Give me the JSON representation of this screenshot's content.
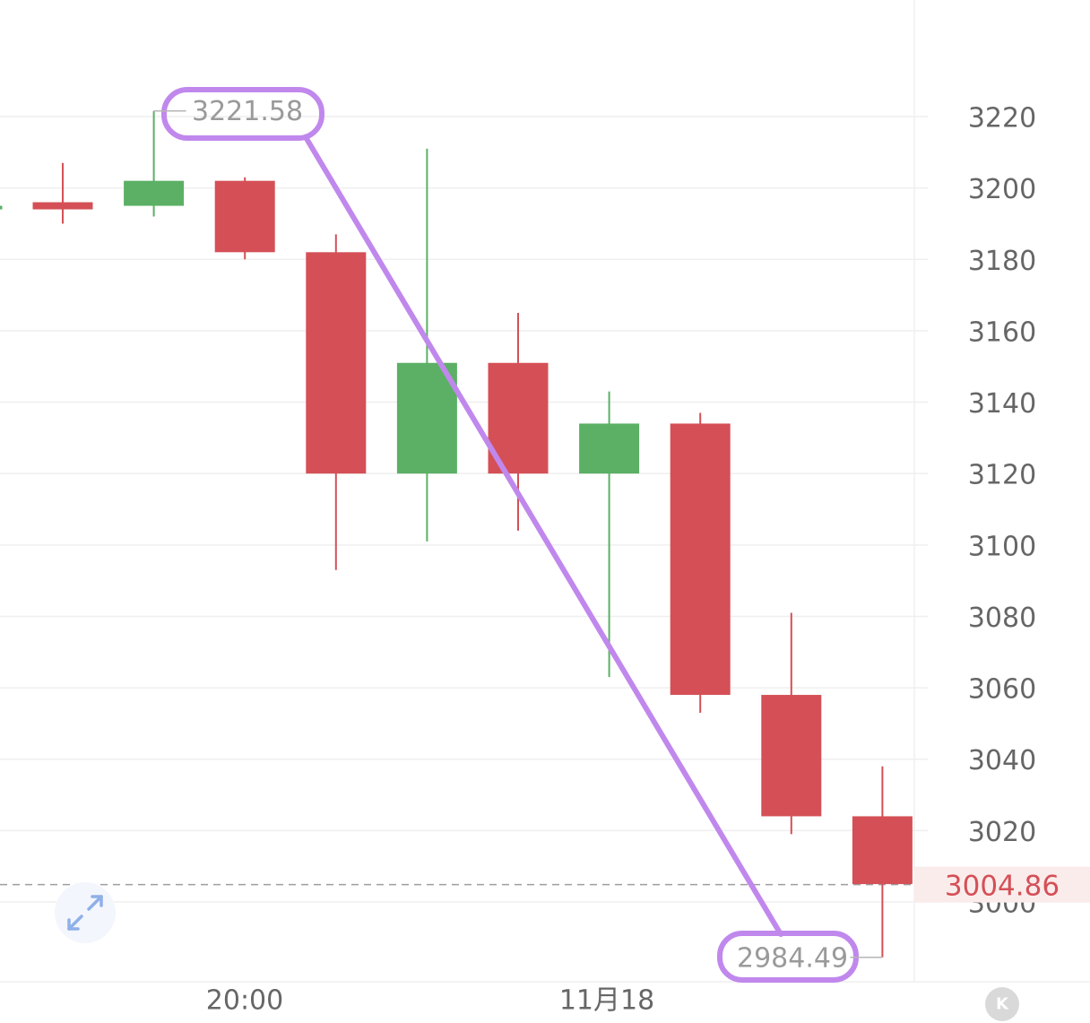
{
  "chart_data": {
    "type": "candlestick",
    "categories": [
      "c1",
      "c2",
      "c3",
      "c4",
      "c5",
      "c6",
      "c7",
      "c8",
      "c9",
      "c10",
      "c11"
    ],
    "ohlc": [
      [
        3196,
        3207,
        3190,
        3194
      ],
      [
        3195,
        3221.58,
        3192,
        3202
      ],
      [
        3202,
        3203,
        3180,
        3182
      ],
      [
        3182,
        3187,
        3093,
        3120
      ],
      [
        3120,
        3211,
        3101,
        3151
      ],
      [
        3151,
        3165,
        3104,
        3120
      ],
      [
        3120,
        3143,
        3063,
        3134
      ],
      [
        3134,
        3137,
        3053,
        3058
      ],
      [
        3058,
        3081,
        3019,
        3024
      ],
      [
        3024,
        3038,
        2984.49,
        3005
      ]
    ],
    "partial_first_candle": [
      3194,
      3195,
      3193,
      3195
    ],
    "y_ticks": [
      "3220",
      "3200",
      "3180",
      "3160",
      "3140",
      "3120",
      "3100",
      "3080",
      "3060",
      "3040",
      "3020",
      "3000"
    ],
    "ylim": [
      2970,
      3250
    ],
    "x_ticks": [
      {
        "label": "20:00",
        "index": 3
      },
      {
        "label": "11月18",
        "index": 7
      }
    ],
    "last_price": {
      "value": 3004.86,
      "label": "3004.86"
    },
    "annotations": {
      "high": {
        "value": 3221.58,
        "label": "3221.58",
        "index": 2
      },
      "low": {
        "value": 2984.49,
        "label": "2984.49",
        "index": 10
      }
    },
    "colors": {
      "up": "#5bb065",
      "down": "#d45056",
      "grid": "#efefef",
      "axis_text": "#666666",
      "last_price": "#d45056",
      "highlight": "#c088ec"
    },
    "icons": {
      "expand": "expand-arrows-icon",
      "brand": "k-logo-icon"
    },
    "brand_letter": "K"
  }
}
